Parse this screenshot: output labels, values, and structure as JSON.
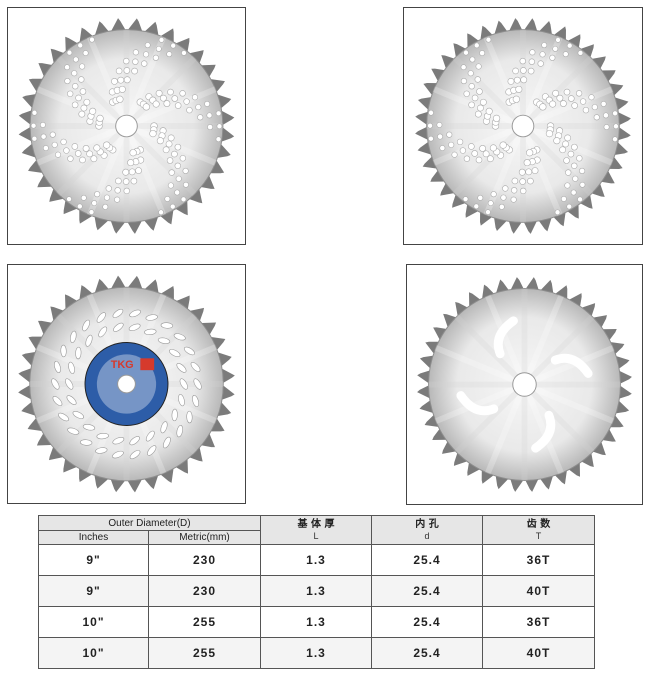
{
  "products": [
    {
      "name": "blade-1",
      "hole_pattern": "swirl-dots"
    },
    {
      "name": "blade-2",
      "hole_pattern": "swirl-dots"
    },
    {
      "name": "blade-3",
      "hole_pattern": "slot-rings",
      "label": "TKG"
    },
    {
      "name": "blade-4",
      "hole_pattern": "curved-slots"
    }
  ],
  "table": {
    "group_header": "Outer Diameter(D)",
    "col_inches": "Inches",
    "col_metric": "Metric(mm)",
    "col_thickness_zh": "基 体 厚",
    "col_thickness_en": "L",
    "col_bore_zh": "内  孔",
    "col_bore_en": "d",
    "col_teeth_zh": "齿 数",
    "col_teeth_en": "T",
    "rows": [
      {
        "inches": "9\"",
        "metric": "230",
        "thickness": "1.3",
        "bore": "25.4",
        "teeth": "36T"
      },
      {
        "inches": "9\"",
        "metric": "230",
        "thickness": "1.3",
        "bore": "25.4",
        "teeth": "40T"
      },
      {
        "inches": "10\"",
        "metric": "255",
        "thickness": "1.3",
        "bore": "25.4",
        "teeth": "36T"
      },
      {
        "inches": "10\"",
        "metric": "255",
        "thickness": "1.3",
        "bore": "25.4",
        "teeth": "40T"
      }
    ]
  },
  "colors": {
    "blade_light": "#e9e9e9",
    "blade_dark": "#9a9a9a",
    "teeth": "#7b7b7b",
    "label_blue": "#2d5da8",
    "label_red": "#d63a2c"
  }
}
